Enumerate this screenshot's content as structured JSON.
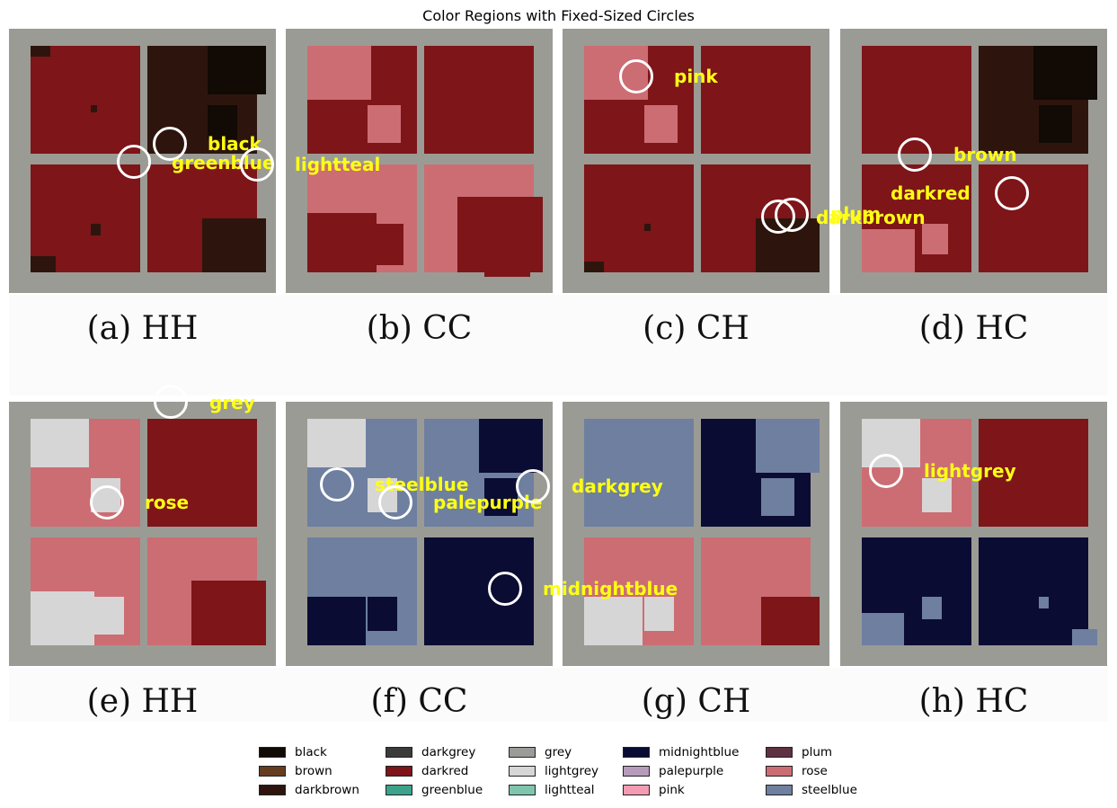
{
  "title": "Color Regions with Fixed-Sized Circles",
  "colors": {
    "black": "#110a05",
    "brown": "#653d1f",
    "darkbrown": "#2d150d",
    "darkgrey": "#3d3b3a",
    "darkred": "#7e1519",
    "greenblue": "#3ca28c",
    "grey": "#9b9b97",
    "lightgrey": "#d7d6d6",
    "lightteal": "#7fc5ad",
    "midnightblue": "#0b0c33",
    "palepurple": "#b69bbb",
    "pink": "#f29bb3",
    "plum": "#5f3041",
    "rose": "#cc6d73",
    "steelblue": "#6e7fa0"
  },
  "panels": [
    {
      "caption": "(a)  HH",
      "quads": [
        {
          "base": "darkred",
          "accent": "darkbrown",
          "accent_level": 0.1
        },
        {
          "base": "darkbrown",
          "accent": "black",
          "accent_level": 0.45
        },
        {
          "base": "darkred",
          "accent": "darkbrown",
          "accent_level": 0.15
        },
        {
          "base": "darkred",
          "accent": "darkbrown",
          "accent_level": 0.5
        }
      ],
      "markers": [
        {
          "label": "black"
        },
        {
          "label": "greenblue"
        }
      ]
    },
    {
      "caption": "(b)  CC",
      "quads": [
        {
          "base": "darkred",
          "accent": "rose",
          "accent_level": 0.5
        },
        {
          "base": "darkred",
          "accent": "darkred",
          "accent_level": 0.0
        },
        {
          "base": "rose",
          "accent": "darkred",
          "accent_level": 0.55
        },
        {
          "base": "rose",
          "accent": "darkred",
          "accent_level": 0.7
        }
      ],
      "markers": [
        {
          "label": "lightteal"
        }
      ]
    },
    {
      "caption": "(c)  CH",
      "quads": [
        {
          "base": "darkred",
          "accent": "rose",
          "accent_level": 0.5
        },
        {
          "base": "darkred",
          "accent": "darkred",
          "accent_level": 0.0
        },
        {
          "base": "darkred",
          "accent": "darkbrown",
          "accent_level": 0.1
        },
        {
          "base": "darkred",
          "accent": "darkbrown",
          "accent_level": 0.5
        }
      ],
      "markers": [
        {
          "label": "pink"
        },
        {
          "label": "plum"
        },
        {
          "label": "darkbrown"
        }
      ]
    },
    {
      "caption": "(d)  HC",
      "quads": [
        {
          "base": "darkred",
          "accent": "darkred",
          "accent_level": 0.0
        },
        {
          "base": "darkbrown",
          "accent": "black",
          "accent_level": 0.5
        },
        {
          "base": "darkred",
          "accent": "rose",
          "accent_level": 0.4
        },
        {
          "base": "darkred",
          "accent": "darkred",
          "accent_level": 0.0
        }
      ],
      "markers": [
        {
          "label": "brown"
        },
        {
          "label": "darkred"
        }
      ]
    },
    {
      "caption": "(e)  HH",
      "quads": [
        {
          "base": "rose",
          "accent": "lightgrey",
          "accent_level": 0.45
        },
        {
          "base": "darkred",
          "accent": "darkred",
          "accent_level": 0.0
        },
        {
          "base": "rose",
          "accent": "lightgrey",
          "accent_level": 0.5
        },
        {
          "base": "rose",
          "accent": "darkred",
          "accent_level": 0.6
        }
      ],
      "markers": [
        {
          "label": "grey"
        },
        {
          "label": "rose"
        }
      ]
    },
    {
      "caption": "(f)  CC",
      "quads": [
        {
          "base": "steelblue",
          "accent": "lightgrey",
          "accent_level": 0.45
        },
        {
          "base": "steelblue",
          "accent": "midnightblue",
          "accent_level": 0.5
        },
        {
          "base": "steelblue",
          "accent": "midnightblue",
          "accent_level": 0.45
        },
        {
          "base": "midnightblue",
          "accent": "midnightblue",
          "accent_level": 0.0
        }
      ],
      "markers": [
        {
          "label": "steelblue"
        },
        {
          "label": "palepurple"
        },
        {
          "label": "darkgrey"
        },
        {
          "label": "midnightblue"
        }
      ]
    },
    {
      "caption": "(g)  CH",
      "quads": [
        {
          "base": "steelblue",
          "accent": "steelblue",
          "accent_level": 0.0
        },
        {
          "base": "midnightblue",
          "accent": "steelblue",
          "accent_level": 0.5
        },
        {
          "base": "rose",
          "accent": "lightgrey",
          "accent_level": 0.45
        },
        {
          "base": "rose",
          "accent": "darkred",
          "accent_level": 0.45
        }
      ],
      "markers": []
    },
    {
      "caption": "(h)  HC",
      "quads": [
        {
          "base": "rose",
          "accent": "lightgrey",
          "accent_level": 0.45
        },
        {
          "base": "darkred",
          "accent": "darkred",
          "accent_level": 0.0
        },
        {
          "base": "midnightblue",
          "accent": "steelblue",
          "accent_level": 0.3
        },
        {
          "base": "midnightblue",
          "accent": "steelblue",
          "accent_level": 0.15
        }
      ],
      "markers": [
        {
          "label": "lightgrey"
        }
      ]
    }
  ],
  "legend": [
    "black",
    "brown",
    "darkbrown",
    "darkgrey",
    "darkred",
    "greenblue",
    "grey",
    "lightgrey",
    "lightteal",
    "midnightblue",
    "palepurple",
    "pink",
    "plum",
    "rose",
    "steelblue"
  ]
}
